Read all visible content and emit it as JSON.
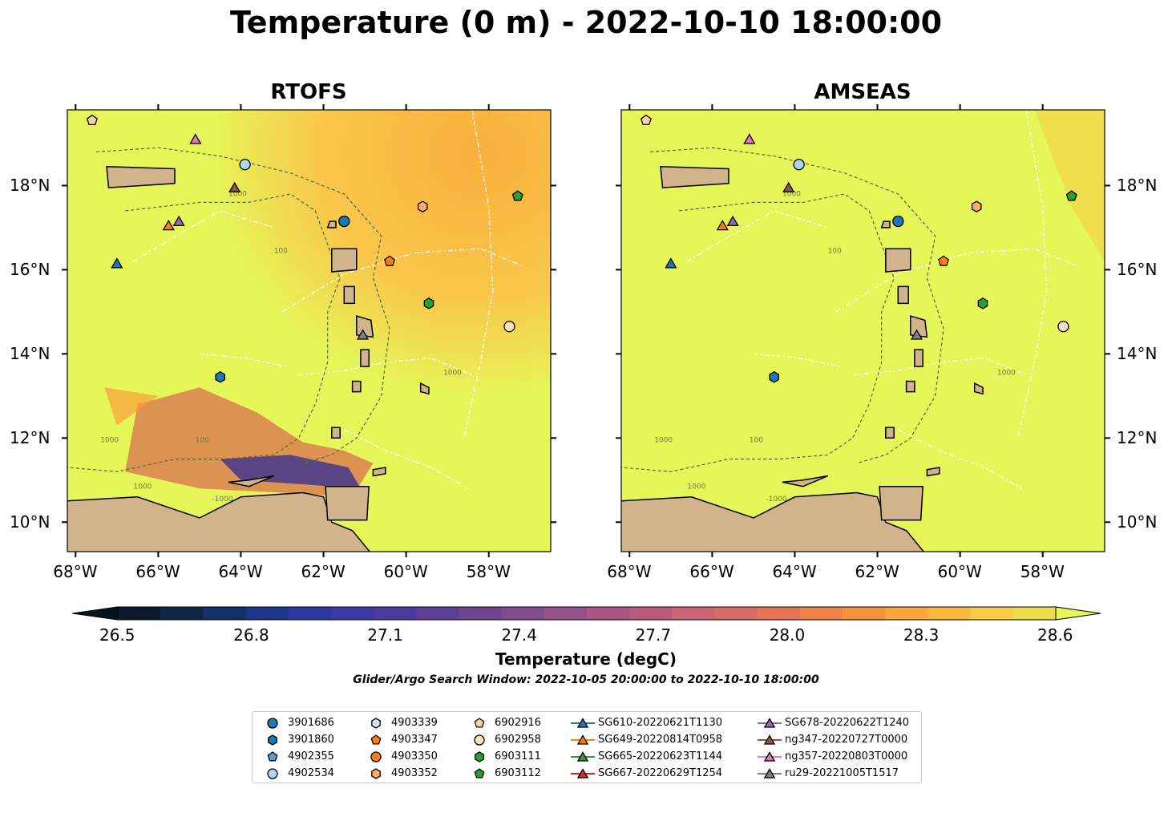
{
  "title": "Temperature (0 m) - 2022-10-10 18:00:00",
  "panels": [
    {
      "title": "RTOFS"
    },
    {
      "title": "AMSEAS"
    }
  ],
  "axes": {
    "x_ticks": [
      "68°W",
      "66°W",
      "64°W",
      "62°W",
      "60°W",
      "58°W"
    ],
    "y_ticks": [
      "18°N",
      "16°N",
      "14°N",
      "12°N",
      "10°N"
    ]
  },
  "colorbar": {
    "label": "Temperature (degC)",
    "ticks": [
      "26.5",
      "26.8",
      "27.1",
      "27.4",
      "27.7",
      "28.0",
      "28.3",
      "28.6"
    ],
    "subtitle": "Glider/Argo Search Window: 2022-10-05 20:00:00 to 2022-10-10 18:00:00"
  },
  "contour_labels": [
    "1000",
    "100",
    "1000",
    "-1000",
    "1000",
    "1000",
    "100"
  ],
  "colors": {
    "land": "#d2b48c",
    "sea_warm": "#e6f558",
    "sea_orange": "#f9ae3d",
    "ocean_shallow": "#a6c8e8",
    "contour": "#556b2f"
  },
  "chart_data": {
    "type": "heatmap",
    "title": "Temperature (0 m) - 2022-10-10 18:00:00",
    "units": "degC",
    "colorbar_range": [
      26.5,
      28.6
    ],
    "lon_range": [
      -68.2,
      -56.5
    ],
    "lat_range": [
      9.3,
      19.8
    ],
    "models": [
      "RTOFS",
      "AMSEAS"
    ],
    "legend": [
      {
        "name": "3901686",
        "marker": "circle",
        "color": "#1f77b4",
        "lon": -61.5,
        "lat": 17.15
      },
      {
        "name": "3901860",
        "marker": "hexagon",
        "color": "#1f77b4",
        "lon": -64.5,
        "lat": 13.45
      },
      {
        "name": "4902355",
        "marker": "pentagon",
        "color": "#5b9bd5",
        "lon": null,
        "lat": null
      },
      {
        "name": "4902534",
        "marker": "circle",
        "color": "#aed4f0",
        "lon": -63.9,
        "lat": 18.5
      },
      {
        "name": "4903339",
        "marker": "hexagon",
        "color": "#cfe6f7",
        "lon": null,
        "lat": null
      },
      {
        "name": "4903347",
        "marker": "pentagon",
        "color": "#ff7f0e",
        "lon": -60.4,
        "lat": 16.2
      },
      {
        "name": "4903350",
        "marker": "circle",
        "color": "#ff7f0e",
        "lon": null,
        "lat": null
      },
      {
        "name": "4903352",
        "marker": "hexagon",
        "color": "#ffad66",
        "lon": -59.6,
        "lat": 17.5
      },
      {
        "name": "6902916",
        "marker": "pentagon",
        "color": "#ffd0a0",
        "lon": -67.6,
        "lat": 19.55
      },
      {
        "name": "6902958",
        "marker": "circle",
        "color": "#ffdfc0",
        "lon": -57.5,
        "lat": 14.65
      },
      {
        "name": "6903111",
        "marker": "hexagon",
        "color": "#2ca02c",
        "lon": -59.45,
        "lat": 15.2
      },
      {
        "name": "6903112",
        "marker": "pentagon",
        "color": "#2ca02c",
        "lon": -57.3,
        "lat": 17.75
      },
      {
        "name": "SG610-20220621T1130",
        "marker": "triangle",
        "color": "#1f77b4",
        "lon": -67.0,
        "lat": 16.15
      },
      {
        "name": "SG649-20220814T0958",
        "marker": "triangle",
        "color": "#ff7f0e",
        "lon": -65.75,
        "lat": 17.05
      },
      {
        "name": "SG665-20220623T1144",
        "marker": "triangle",
        "color": "#2ca02c",
        "lon": null,
        "lat": null
      },
      {
        "name": "SG667-20220629T1254",
        "marker": "triangle",
        "color": "#d62728",
        "lon": null,
        "lat": null
      },
      {
        "name": "SG678-20220622T1240",
        "marker": "triangle",
        "color": "#9467bd",
        "lon": -65.5,
        "lat": 17.15
      },
      {
        "name": "ng347-20220727T0000",
        "marker": "triangle",
        "color": "#8c564b",
        "lon": -64.15,
        "lat": 17.95
      },
      {
        "name": "ng357-20220803T0000",
        "marker": "triangle",
        "color": "#e377c2",
        "lon": -65.1,
        "lat": 19.1
      },
      {
        "name": "ru29-20221005T1517",
        "marker": "triangle",
        "color": "#7f7f7f",
        "lon": -61.05,
        "lat": 14.45
      }
    ]
  }
}
